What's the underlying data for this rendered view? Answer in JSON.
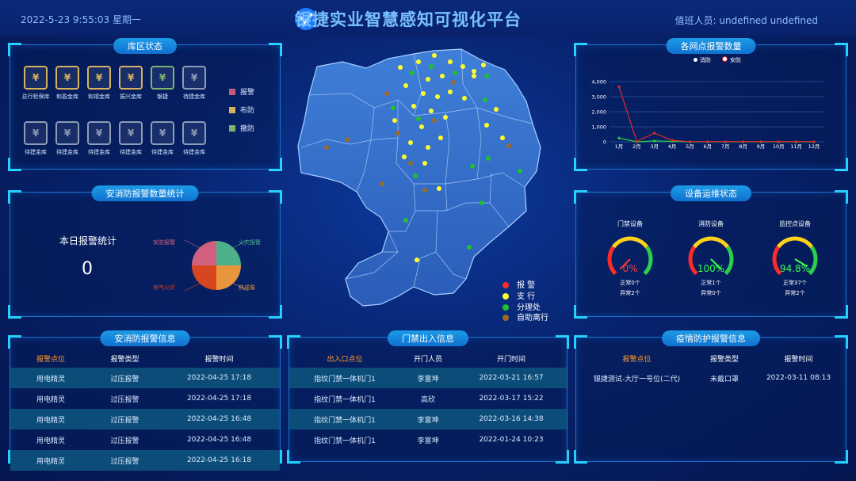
{
  "header": {
    "datetime": "2022-5-23 9:55:03  星期一",
    "title": "银捷实业智慧感知可视化平台",
    "duty": "值班人员:  undefined    undefined"
  },
  "vault_status": {
    "title": "库区状态",
    "items": [
      {
        "label": "总行柜保库",
        "icon": "vault-shield-icon",
        "color": "#d7b35d"
      },
      {
        "label": "和盈金库",
        "icon": "vault-shield-icon",
        "color": "#d7b35d"
      },
      {
        "label": "和靖金库",
        "icon": "vault-shield-icon",
        "color": "#d7b35d"
      },
      {
        "label": "振兴金库",
        "icon": "vault-shield-icon",
        "color": "#d7b35d"
      },
      {
        "label": "银捷",
        "icon": "vault-shield-icon",
        "color": "#7ab66e"
      },
      {
        "label": "待建金库",
        "icon": "vault-shield-icon",
        "color": "#8f9bb5"
      },
      {
        "label": "待建金库",
        "icon": "vault-shield-icon",
        "color": "#8f9bb5"
      },
      {
        "label": "待建金库",
        "icon": "vault-shield-icon",
        "color": "#8f9bb5"
      },
      {
        "label": "待建金库",
        "icon": "vault-shield-icon",
        "color": "#8f9bb5"
      },
      {
        "label": "待建金库",
        "icon": "vault-shield-icon",
        "color": "#8f9bb5"
      },
      {
        "label": "待建金库",
        "icon": "vault-shield-icon",
        "color": "#8f9bb5"
      },
      {
        "label": "待建金库",
        "icon": "vault-shield-icon",
        "color": "#8f9bb5"
      }
    ],
    "legend": [
      {
        "label": "报警",
        "color": "#c65b7c"
      },
      {
        "label": "布防",
        "color": "#d7b35d"
      },
      {
        "label": "撤防",
        "color": "#7ab66e"
      }
    ]
  },
  "security_stats": {
    "title": "安消防报警数量统计",
    "today_label": "本日报警统计",
    "today_value": "0",
    "pie_labels": {
      "anfang": "安防报警",
      "huozai": "火灾报警",
      "dianqi": "电气火灾",
      "redian": "热成像"
    },
    "pie_colors": [
      "#d0607e",
      "#4db08a",
      "#e8963e",
      "#d7461f"
    ]
  },
  "alarm_chart": {
    "title": "各网点报警数量",
    "legend": [
      {
        "name": "消防",
        "color": "#ffffff"
      },
      {
        "name": "安防",
        "color": "#ffffff"
      }
    ]
  },
  "chart_data": {
    "type": "line",
    "x": [
      "1月",
      "2月",
      "3月",
      "4月",
      "5月",
      "6月",
      "7月",
      "8月",
      "9月",
      "10月",
      "11月",
      "12月"
    ],
    "ylim": [
      0,
      4000
    ],
    "yticks": [
      "0",
      "1,000",
      "2,000",
      "3,000",
      "4,000"
    ],
    "series": [
      {
        "name": "消防",
        "values": [
          250,
          0,
          60,
          30,
          0,
          0,
          0,
          0,
          0,
          0,
          0,
          0
        ],
        "color": "#2ad04b"
      },
      {
        "name": "安防",
        "values": [
          3650,
          30,
          580,
          100,
          10,
          10,
          10,
          10,
          10,
          10,
          10,
          10
        ],
        "color": "#e02a2a"
      }
    ]
  },
  "device_status": {
    "title": "设备运维状态",
    "gauges": [
      {
        "name": "门禁设备",
        "value": "0%",
        "value_color": "#ff3a3a",
        "fraction": 0.0,
        "normal": "正常0个",
        "abnormal": "异常2个"
      },
      {
        "name": "消防设备",
        "value": "100%",
        "value_color": "#37ff50",
        "fraction": 1.0,
        "normal": "正常1个",
        "abnormal": "异常0个"
      },
      {
        "name": "监控点设备",
        "value": "94.8%",
        "value_color": "#37ff50",
        "fraction": 0.948,
        "normal": "正常37个",
        "abnormal": "异常2个"
      }
    ]
  },
  "map": {
    "legend": [
      {
        "label": "报  警",
        "color": "#ff2a2a"
      },
      {
        "label": "支  行",
        "color": "#ffff2a"
      },
      {
        "label": "分理处",
        "color": "#20c030"
      },
      {
        "label": "自助离行",
        "color": "#9a6a2a"
      }
    ]
  },
  "security_info": {
    "title": "安消防报警信息",
    "headers": [
      "报警点位",
      "报警类型",
      "报警时间"
    ],
    "rows": [
      [
        "用电精灵",
        "过压报警",
        "2022-04-25 17:18"
      ],
      [
        "用电精灵",
        "过压报警",
        "2022-04-25 17:18"
      ],
      [
        "用电精灵",
        "过压报警",
        "2022-04-25 16:48"
      ],
      [
        "用电精灵",
        "过压报警",
        "2022-04-25 16:48"
      ],
      [
        "用电精灵",
        "过压报警",
        "2022-04-25 16:18"
      ]
    ]
  },
  "access_info": {
    "title": "门禁出入信息",
    "headers": [
      "出入口点位",
      "开门人员",
      "开门时间"
    ],
    "rows": [
      [
        "指纹门禁一体机门1",
        "李富坤",
        "2022-03-21 16:57"
      ],
      [
        "指纹门禁一体机门1",
        "高欣",
        "2022-03-17 15:22"
      ],
      [
        "指纹门禁一体机门1",
        "李富坤",
        "2022-03-16 14:38"
      ],
      [
        "指纹门禁一体机门1",
        "李富坤",
        "2022-01-24 10:23"
      ]
    ]
  },
  "epidemic_info": {
    "title": "疫情防护报警信息",
    "headers": [
      "报警点位",
      "报警类型",
      "报警时间"
    ],
    "rows": [
      [
        "银捷测试-大厅一号位(二代)",
        "未戴口罩",
        "2022-03-11 08:13"
      ]
    ]
  }
}
